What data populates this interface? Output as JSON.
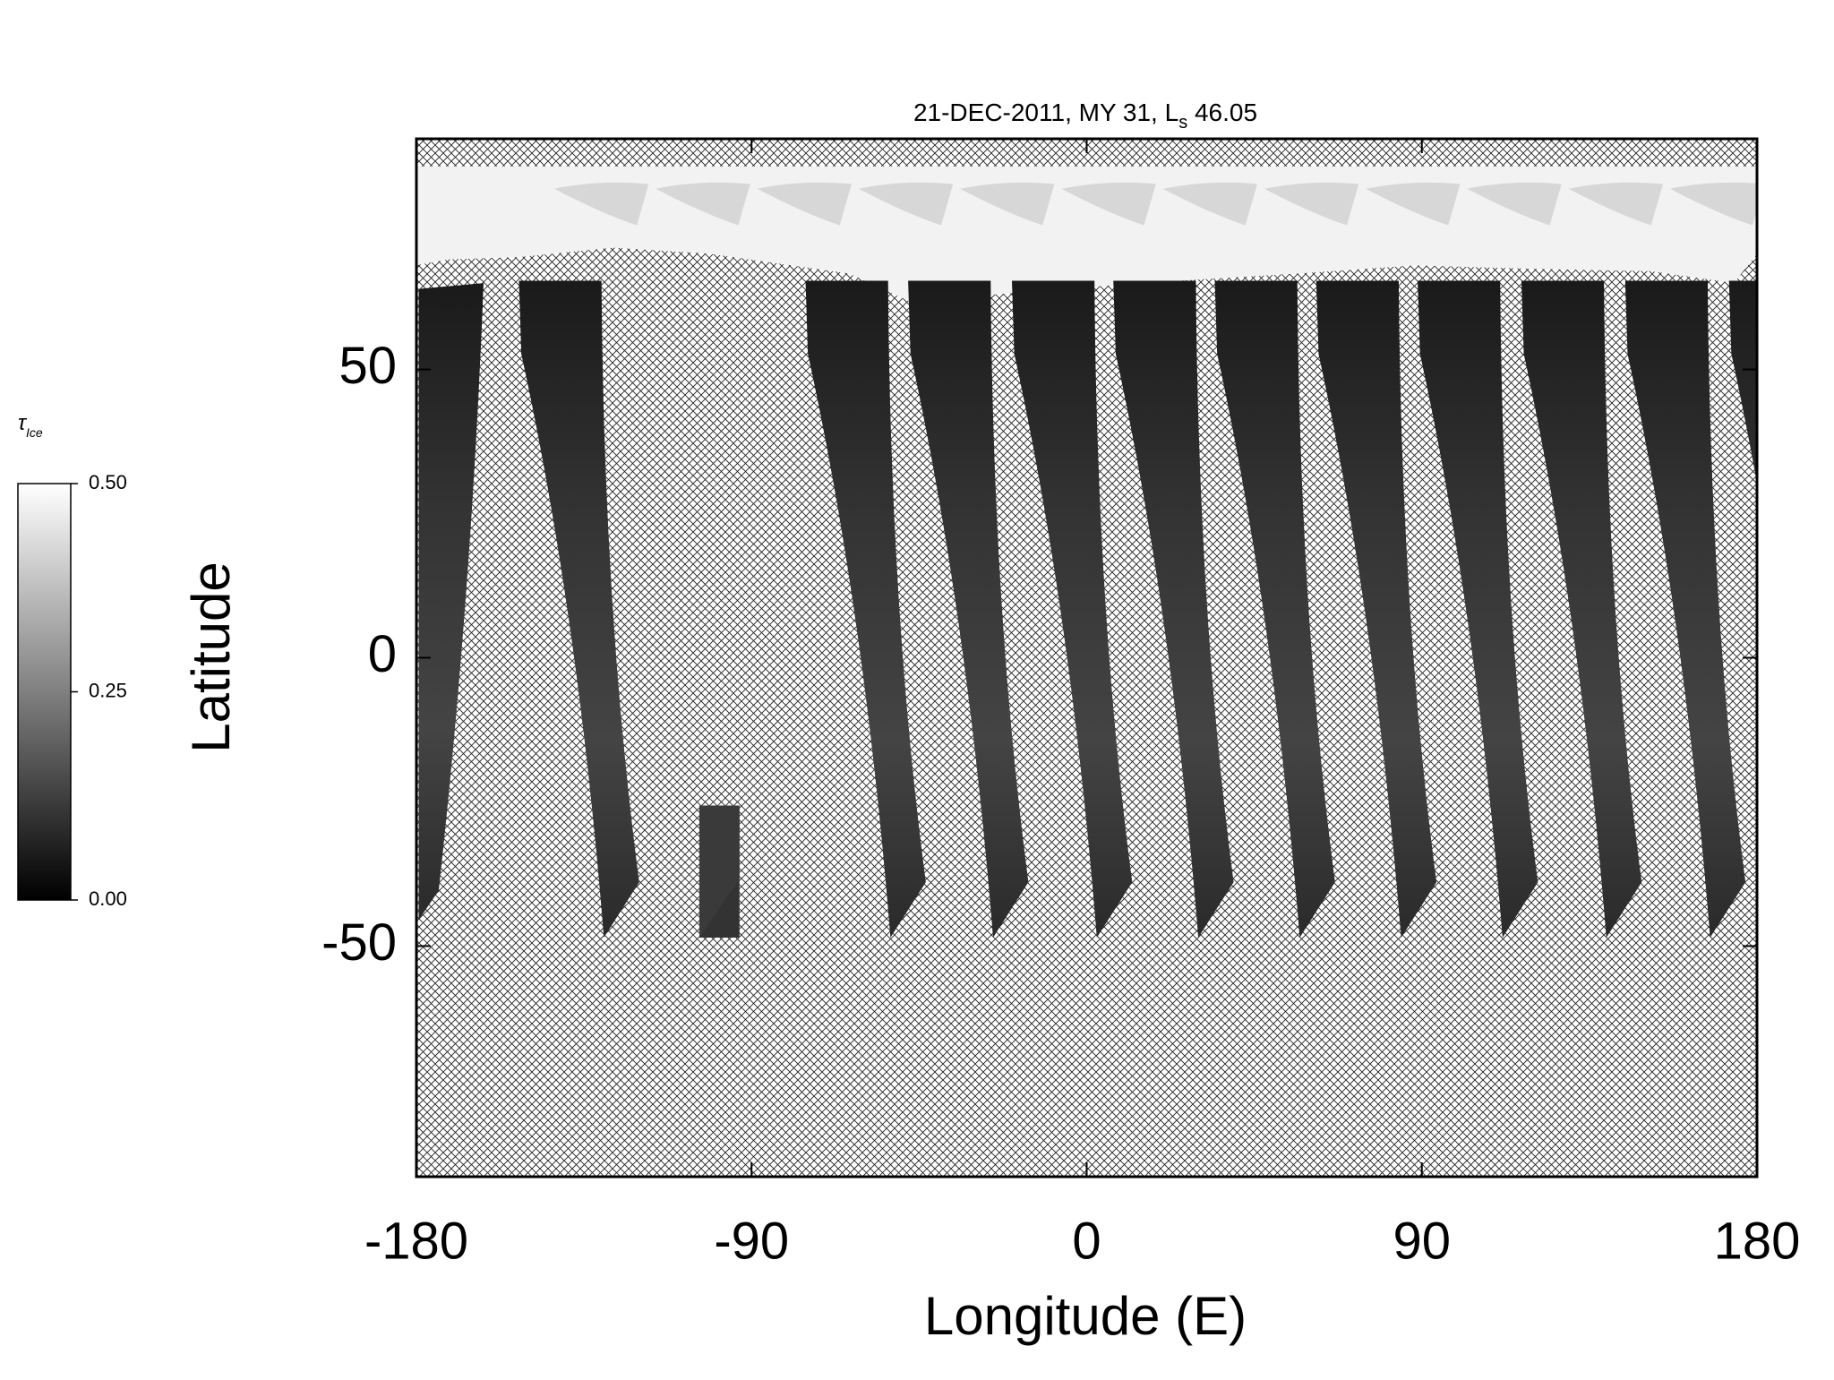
{
  "chart_data": {
    "type": "map",
    "title": "21-DEC-2011, MY 31,  L",
    "title_subscript": "s",
    "title_suffix": " 46.05",
    "x_label": "Longitude (E)",
    "y_label": "Latitude",
    "xlim": [
      -180,
      180
    ],
    "xticks": [
      -180,
      -90,
      0,
      90,
      180
    ],
    "ylim": [
      -90,
      90
    ],
    "yticks": [
      -50,
      0,
      50
    ],
    "colorbar": {
      "label": "τ",
      "label_subscript": "Ice",
      "lim": [
        0,
        0.5
      ],
      "ticks": [
        {
          "value": 0,
          "label": "0.00"
        },
        {
          "value": 0.25,
          "label": "0.25"
        },
        {
          "value": 0.5,
          "label": "0.50"
        }
      ],
      "colors": [
        "#000000",
        "#ffffff"
      ]
    }
  }
}
